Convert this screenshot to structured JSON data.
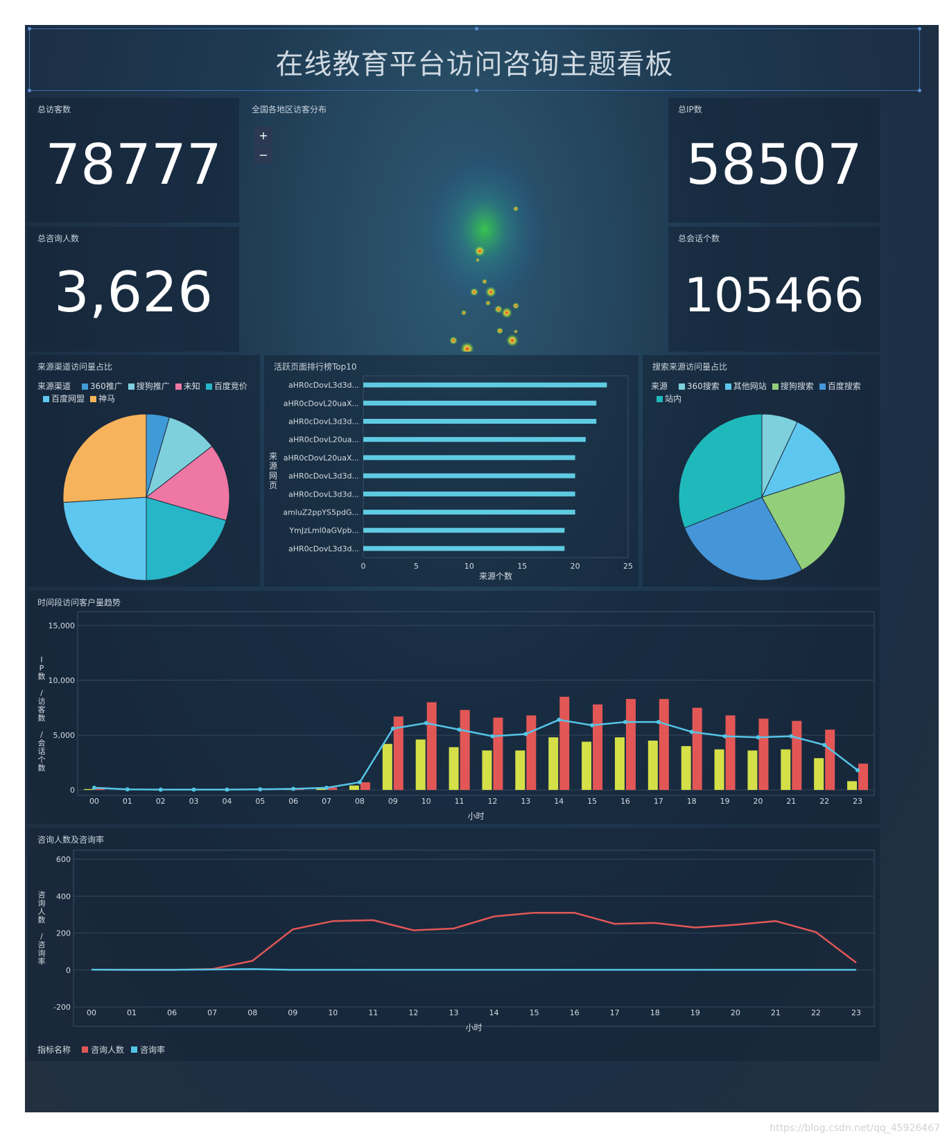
{
  "header": {
    "title": "在线教育平台访问咨询主题看板"
  },
  "kpis": {
    "total_visitors": {
      "label": "总访客数",
      "value": "78777"
    },
    "total_ip": {
      "label": "总IP数",
      "value": "58507"
    },
    "total_consult": {
      "label": "总咨询人数",
      "value": "3,626"
    },
    "total_sessions": {
      "label": "总会话个数",
      "value": "105466"
    }
  },
  "map": {
    "label": "全国各地区访客分布",
    "zoom_in": "+",
    "zoom_out": "−"
  },
  "source_channel": {
    "label": "来源渠道访问量占比",
    "legend_title": "来源渠道",
    "legend": [
      "360推广",
      "搜狗推广",
      "未知",
      "百度竞价",
      "百度网盟",
      "神马"
    ],
    "colors": {
      "360推广": "#3f9bd8",
      "搜狗推广": "#7fd0dd",
      "未知": "#ef77a4",
      "百度竞价": "#26b6c7",
      "百度网盟": "#5ec7ef",
      "神马": "#f7b35b"
    },
    "chart_data": {
      "type": "pie",
      "labels": [
        "360推广",
        "搜狗推广",
        "未知",
        "百度竞价",
        "百度网盟",
        "神马"
      ],
      "values": [
        4.5,
        10,
        15,
        20.5,
        24,
        26
      ]
    }
  },
  "top_pages": {
    "label": "活跃页面排行榜Top10",
    "chart_data": {
      "type": "bar",
      "orientation": "horizontal",
      "categories": [
        "aHR0cDovL3d3d...",
        "aHR0cDovL20uaX...",
        "aHR0cDovL3d3d...",
        "aHR0cDovL20ua...",
        "aHR0cDovL20uaX...",
        "aHR0cDovL3d3d...",
        "aHR0cDovL3d3d...",
        "amluZ2ppYS5pdG...",
        "YmJzLml0aGVpb...",
        "aHR0cDovL3d3d..."
      ],
      "values": [
        23,
        22,
        22,
        21,
        20,
        20,
        20,
        20,
        19,
        19
      ],
      "xlim": [
        0,
        25
      ],
      "xticks": [
        "0",
        "5",
        "10",
        "15",
        "20",
        "25"
      ],
      "xlabel": "来源个数",
      "ylabel": "来源网页",
      "color": "#5fcbe3"
    }
  },
  "search_source": {
    "label": "搜索来源访问量占比",
    "legend_title": "来源",
    "legend": [
      "360搜索",
      "其他网站",
      "搜狗搜索",
      "百度搜索",
      "站内"
    ],
    "colors": {
      "360搜索": "#7fd0dd",
      "其他网站": "#5ec7ef",
      "搜狗搜索": "#93cf7a",
      "百度搜索": "#4596d8",
      "站内": "#1fb9bc"
    },
    "chart_data": {
      "type": "pie",
      "labels": [
        "360搜索",
        "其他网站",
        "搜狗搜索",
        "百度搜索",
        "站内"
      ],
      "values": [
        7,
        13,
        22,
        27,
        31
      ]
    }
  },
  "hourly": {
    "label": "时间段访问客户量趋势",
    "chart_data": {
      "type": "bar",
      "categories": [
        "00",
        "01",
        "02",
        "03",
        "04",
        "05",
        "06",
        "07",
        "08",
        "09",
        "10",
        "11",
        "12",
        "13",
        "14",
        "15",
        "16",
        "17",
        "18",
        "19",
        "20",
        "21",
        "22",
        "23"
      ],
      "series": [
        {
          "name": "IP数",
          "type": "bar",
          "color": "#d5e048",
          "values": [
            80,
            20,
            10,
            10,
            10,
            15,
            40,
            120,
            400,
            4200,
            4600,
            3900,
            3600,
            3600,
            4800,
            4400,
            4800,
            4500,
            4000,
            3700,
            3600,
            3700,
            2900,
            800
          ]
        },
        {
          "name": "会话个数",
          "type": "bar",
          "color": "#e25756",
          "values": [
            250,
            60,
            40,
            30,
            30,
            50,
            100,
            230,
            700,
            6700,
            8000,
            7300,
            6600,
            6800,
            8500,
            7800,
            8300,
            8300,
            7500,
            6800,
            6500,
            6300,
            5500,
            2400
          ]
        },
        {
          "name": "访客数",
          "type": "line",
          "color": "#55c5e6",
          "values": [
            200,
            50,
            30,
            30,
            30,
            60,
            100,
            200,
            700,
            5600,
            6100,
            5500,
            4900,
            5100,
            6400,
            5900,
            6200,
            6200,
            5300,
            4900,
            4800,
            4900,
            4100,
            1800
          ]
        }
      ],
      "ylim": [
        -500,
        15000
      ],
      "yticks": [
        "15,000",
        "10,000",
        "5,000",
        "0"
      ],
      "xlabel": "小时",
      "ylabel": "IP数 /访客数 /会话个数"
    }
  },
  "consult": {
    "label": "咨询人数及咨询率",
    "chart_data": {
      "type": "line",
      "categories": [
        "00",
        "01",
        "06",
        "07",
        "08",
        "09",
        "10",
        "11",
        "12",
        "13",
        "14",
        "15",
        "16",
        "17",
        "18",
        "19",
        "20",
        "21",
        "22",
        "23"
      ],
      "series": [
        {
          "name": "咨询人数",
          "color": "#e25756",
          "values": [
            2,
            1,
            1,
            5,
            50,
            220,
            265,
            270,
            215,
            225,
            290,
            310,
            310,
            250,
            255,
            230,
            245,
            265,
            205,
            40
          ]
        },
        {
          "name": "咨询率",
          "color": "#55c5e6",
          "values": [
            2,
            1,
            1,
            3,
            5,
            1,
            1,
            1,
            1,
            1,
            1,
            1,
            1,
            1,
            1,
            1,
            1,
            1,
            1,
            1
          ]
        }
      ],
      "ylim": [
        -200,
        600
      ],
      "yticks": [
        "600",
        "400",
        "200",
        "0",
        "-200"
      ],
      "xlabel": "小时",
      "ylabel": "咨询人数 /咨询率",
      "legend_title": "指标名称"
    }
  },
  "watermark": "https://blog.csdn.net/qq_45926467"
}
